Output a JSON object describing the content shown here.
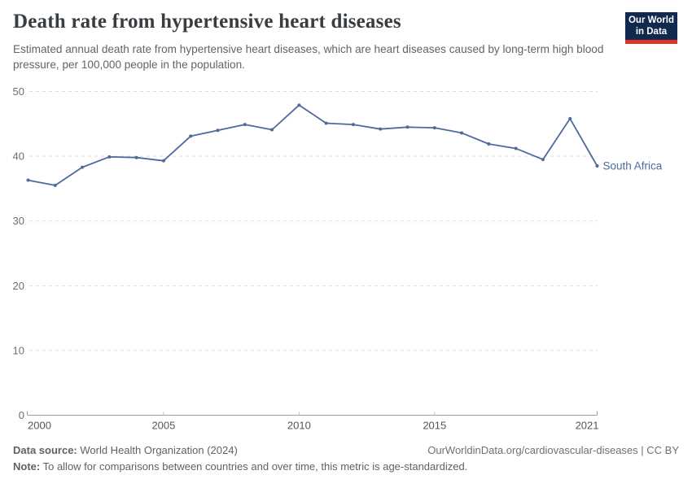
{
  "header": {
    "title": "Death rate from hypertensive heart diseases",
    "subtitle": "Estimated annual death rate from hypertensive heart diseases, which are heart diseases caused by long-term high blood pressure, per 100,000 people in the population.",
    "logo": {
      "line1": "Our World",
      "line2": "in Data",
      "bg_color": "#12294e",
      "stripe_color": "#d7352b"
    }
  },
  "footer": {
    "data_source_label": "Data source:",
    "data_source_value": " World Health Organization (2024)",
    "link": "OurWorldinData.org/cardiovascular-diseases | CC BY",
    "note_label": "Note:",
    "note_value": " To allow for comparisons between countries and over time, this metric is age-standardized."
  },
  "chart_data": {
    "type": "line",
    "title": "Death rate from hypertensive heart diseases",
    "xlabel": "",
    "ylabel": "",
    "x": [
      2000,
      2001,
      2002,
      2003,
      2004,
      2005,
      2006,
      2007,
      2008,
      2009,
      2010,
      2011,
      2012,
      2013,
      2014,
      2015,
      2016,
      2017,
      2018,
      2019,
      2020,
      2021
    ],
    "series": [
      {
        "name": "South Africa",
        "color": "#4c6a9c",
        "values": [
          36.3,
          35.5,
          38.3,
          39.9,
          39.8,
          39.3,
          43.1,
          44.0,
          44.9,
          44.1,
          47.9,
          45.1,
          44.9,
          44.2,
          44.5,
          44.4,
          43.6,
          41.9,
          41.2,
          39.5,
          45.8,
          38.5
        ]
      }
    ],
    "ylim": [
      0,
      50
    ],
    "yticks": [
      0,
      10,
      20,
      30,
      40,
      50
    ],
    "xticks": [
      2000,
      2005,
      2010,
      2015,
      2021
    ],
    "grid": "horizontal-dashed",
    "legend_position": "end-of-line-label",
    "axis_color": "#9e9e9e",
    "grid_color": "#dcdcdc",
    "tick_label_color_y": "#6e6e6e",
    "tick_label_color_x": "#565656"
  }
}
